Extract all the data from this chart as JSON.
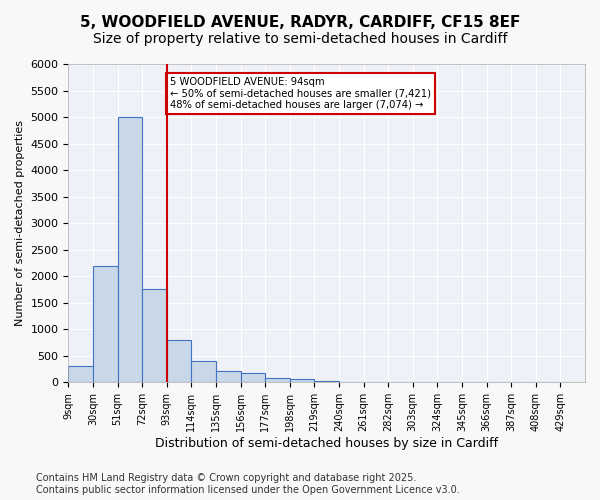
{
  "title1": "5, WOODFIELD AVENUE, RADYR, CARDIFF, CF15 8EF",
  "title2": "Size of property relative to semi-detached houses in Cardiff",
  "xlabel": "Distribution of semi-detached houses by size in Cardiff",
  "ylabel": "Number of semi-detached properties",
  "footer1": "Contains HM Land Registry data © Crown copyright and database right 2025.",
  "footer2": "Contains public sector information licensed under the Open Government Licence v3.0.",
  "tick_labels": [
    "9sqm",
    "30sqm",
    "51sqm",
    "72sqm",
    "93sqm",
    "114sqm",
    "135sqm",
    "156sqm",
    "177sqm",
    "198sqm",
    "219sqm",
    "240sqm",
    "261sqm",
    "282sqm",
    "303sqm",
    "324sqm",
    "345sqm",
    "366sqm",
    "387sqm",
    "408sqm",
    "429sqm"
  ],
  "bar_values": [
    300,
    2200,
    5000,
    1750,
    800,
    400,
    220,
    170,
    90,
    60,
    30,
    15,
    5,
    2,
    1,
    0,
    0,
    0,
    5,
    0
  ],
  "ylim": [
    0,
    6000
  ],
  "yticks": [
    0,
    500,
    1000,
    1500,
    2000,
    2500,
    3000,
    3500,
    4000,
    4500,
    5000,
    5500,
    6000
  ],
  "bar_color": "#c8d8e8",
  "bar_edge_color": "#4472c4",
  "vline_x": 4,
  "vline_color": "#cc0000",
  "annotation_line1": "5 WOODFIELD AVENUE: 94sqm",
  "annotation_line2": "← 50% of semi-detached houses are smaller (7,421)",
  "annotation_line3": "48% of semi-detached houses are larger (7,074) →",
  "annotation_box_color": "#cc0000",
  "bg_color": "#eef2f8",
  "grid_color": "#ffffff",
  "title1_fontsize": 11,
  "title2_fontsize": 10,
  "xlabel_fontsize": 9,
  "ylabel_fontsize": 8,
  "footer_fontsize": 7
}
